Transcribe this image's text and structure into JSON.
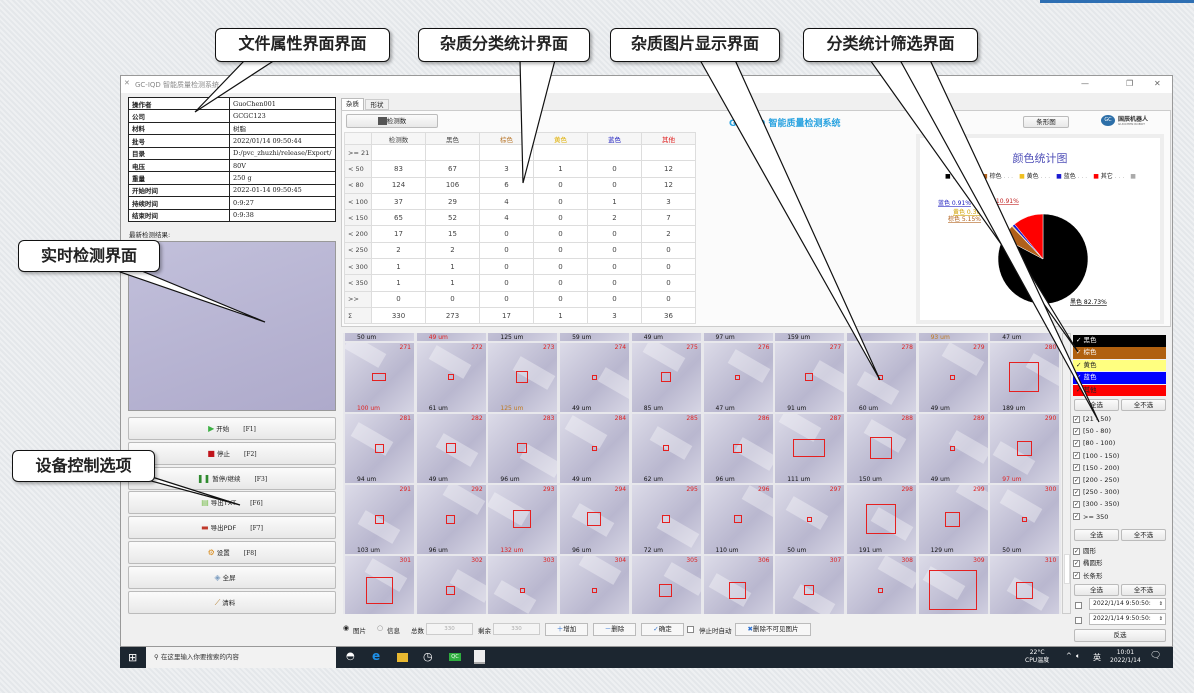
{
  "callouts": {
    "file_attr": "文件属性界面界面",
    "impurity_stats": "杂质分类统计界面",
    "impurity_images": "杂质图片显示界面",
    "filter_stats": "分类统计筛选界面",
    "realtime": "实时检测界面",
    "device_control": "设备控制选项"
  },
  "window": {
    "title": "GC-IQD 智能质量检测系统",
    "app_title": "GC-IQD 智能质量检测系统",
    "logo_text": "国辰机器人",
    "logo_sub": "GUOCHEN ROBOT"
  },
  "info": [
    [
      "操作者",
      "GuoChen001"
    ],
    [
      "公司",
      "GCGC123"
    ],
    [
      "材料",
      "树脂"
    ],
    [
      "批号",
      "2022/01/14 09:50:44"
    ],
    [
      "目录",
      "D:/pvc_zhuzhi/release/Export/"
    ],
    [
      "电压",
      "80V"
    ],
    [
      "重量",
      "250 g"
    ],
    [
      "开始时间",
      "2022-01-14 09:50:45"
    ],
    [
      "持续时间",
      "0:9:27"
    ],
    [
      "结束时间",
      "0:9:38"
    ]
  ],
  "latest_label": "最新检测结果:",
  "controls": [
    {
      "label": "开始",
      "key": "[F1]",
      "icon": "play-icon",
      "color": "#3cb043"
    },
    {
      "label": "停止",
      "key": "[F2]",
      "icon": "stop-icon",
      "color": "#c0141b"
    },
    {
      "label": "暂停/继续",
      "key": "[F3]",
      "icon": "pause-icon",
      "color": "#2f8a2f"
    },
    {
      "label": "导出TXT",
      "key": "[F6]",
      "icon": "txt-file-icon",
      "color": "#7cbf52"
    },
    {
      "label": "导出PDF",
      "key": "[F7]",
      "icon": "pdf-icon",
      "color": "#c0392b"
    },
    {
      "label": "设置",
      "key": "[F8]",
      "icon": "gear-icon",
      "color": "#d88a1a"
    },
    {
      "label": "全屏",
      "key": "",
      "icon": "fullscreen-icon",
      "color": "#7a9cc0"
    },
    {
      "label": "清料",
      "key": "",
      "icon": "broom-icon",
      "color": "#b07a2a"
    }
  ],
  "tabs": [
    "杂质",
    "形状"
  ],
  "count_button": "检测数",
  "bar_chart_button": "条形图",
  "stats": {
    "headers": [
      "检测数",
      "黑色",
      "棕色",
      "黄色",
      "蓝色",
      "其他"
    ],
    "header_colors": [
      "#444",
      "#444",
      "#b8762a",
      "#e0b000",
      "#2020c0",
      "#e02020"
    ],
    "rows": [
      [
        ">= 21",
        "",
        "",
        "",
        "",
        "",
        ""
      ],
      [
        "<  50",
        "83",
        "67",
        "3",
        "1",
        "0",
        "12"
      ],
      [
        "<  80",
        "124",
        "106",
        "6",
        "0",
        "0",
        "12"
      ],
      [
        "< 100",
        "37",
        "29",
        "4",
        "0",
        "1",
        "3"
      ],
      [
        "< 150",
        "65",
        "52",
        "4",
        "0",
        "2",
        "7"
      ],
      [
        "< 200",
        "17",
        "15",
        "0",
        "0",
        "0",
        "2"
      ],
      [
        "< 250",
        "2",
        "2",
        "0",
        "0",
        "0",
        "0"
      ],
      [
        "< 300",
        "1",
        "1",
        "0",
        "0",
        "0",
        "0"
      ],
      [
        "< 350",
        "1",
        "1",
        "0",
        "0",
        "0",
        "0"
      ],
      [
        ">>",
        "0",
        "0",
        "0",
        "0",
        "0",
        "0"
      ],
      [
        "Σ",
        "330",
        "273",
        "17",
        "1",
        "3",
        "36"
      ]
    ]
  },
  "chart_data": {
    "type": "pie",
    "title": "颜色统计图",
    "legend_position": "top",
    "slices": [
      {
        "name": "黑色",
        "value": 273,
        "percent_label": "黑色 82.73%",
        "color": "#000000"
      },
      {
        "name": "棕色",
        "value": 17,
        "percent_label": "棕色 5.15%",
        "color": "#b0601a"
      },
      {
        "name": "黄色",
        "value": 1,
        "percent_label": "黄色 0.30%",
        "color": "#f0c020"
      },
      {
        "name": "蓝色",
        "value": 3,
        "percent_label": "蓝色 0.91%",
        "color": "#1a1ad0"
      },
      {
        "name": "其它",
        "value": 36,
        "percent_label": "其它 10.91%",
        "color": "#ff0000"
      }
    ]
  },
  "images": {
    "top_sizes": [
      [
        "50 um",
        "#111"
      ],
      [
        "49 um",
        "#e02020"
      ],
      [
        "125 um",
        "#111"
      ],
      [
        "59 um",
        "#111"
      ],
      [
        "49 um",
        "#111"
      ],
      [
        "97 um",
        "#111"
      ],
      [
        "159 um",
        "#111"
      ],
      [
        "",
        "#111"
      ],
      [
        "93 um",
        "#c07a20"
      ],
      [
        "47 um",
        "#111"
      ]
    ],
    "rows": [
      {
        "ids": [
          "271",
          "272",
          "273",
          "274",
          "275",
          "276",
          "277",
          "278",
          "279",
          "280"
        ],
        "sizes": [
          [
            "100 um",
            "#e02020"
          ],
          [
            "61 um",
            "#111"
          ],
          [
            "125 um",
            "#c07a20"
          ],
          [
            "49 um",
            "#111"
          ],
          [
            "85 um",
            "#111"
          ],
          [
            "47 um",
            "#111"
          ],
          [
            "91 um",
            "#111"
          ],
          [
            "60 um",
            "#111"
          ],
          [
            "49 um",
            "#111"
          ],
          [
            "189 um",
            "#111"
          ]
        ]
      },
      {
        "ids": [
          "281",
          "282",
          "283",
          "284",
          "285",
          "286",
          "287",
          "288",
          "289",
          "290"
        ],
        "sizes": [
          [
            "94 um",
            "#111"
          ],
          [
            "49 um",
            "#111"
          ],
          [
            "96 um",
            "#111"
          ],
          [
            "49 um",
            "#111"
          ],
          [
            "62 um",
            "#111"
          ],
          [
            "96 um",
            "#111"
          ],
          [
            "111 um",
            "#111"
          ],
          [
            "150 um",
            "#111"
          ],
          [
            "49 um",
            "#111"
          ],
          [
            "97 um",
            "#e02020"
          ]
        ]
      },
      {
        "ids": [
          "291",
          "292",
          "293",
          "294",
          "295",
          "296",
          "297",
          "298",
          "299",
          "300"
        ],
        "sizes": [
          [
            "103 um",
            "#111"
          ],
          [
            "96 um",
            "#111"
          ],
          [
            "132 um",
            "#e02020"
          ],
          [
            "96 um",
            "#111"
          ],
          [
            "72 um",
            "#111"
          ],
          [
            "110 um",
            "#111"
          ],
          [
            "50 um",
            "#111"
          ],
          [
            "191 um",
            "#111"
          ],
          [
            "129 um",
            "#111"
          ],
          [
            "50 um",
            "#111"
          ]
        ]
      },
      {
        "ids": [
          "301",
          "302",
          "303",
          "304",
          "305",
          "306",
          "307",
          "308",
          "309",
          "310"
        ],
        "sizes": []
      }
    ]
  },
  "filters": {
    "colors": [
      {
        "label": "黑色",
        "bg": "#000000",
        "fg": "#ffffff"
      },
      {
        "label": "棕色",
        "bg": "#b0600f",
        "fg": "#ffffff"
      },
      {
        "label": "黄色",
        "bg": "#ffff80",
        "fg": "#222222"
      },
      {
        "label": "蓝色",
        "bg": "#0000ff",
        "fg": "#ffffff"
      },
      {
        "label": "其他",
        "bg": "#ff0000",
        "fg": "#222222"
      }
    ],
    "select_all": "全选",
    "select_none": "全不选",
    "sizes": [
      "[21 - 50)",
      "[50 - 80)",
      "[80 - 100)",
      "[100 - 150)",
      "[150 - 200)",
      "[200 - 250)",
      "[250 - 300)",
      "[300 - 350)",
      ">= 350"
    ],
    "shapes": [
      "圆形",
      "椭圆形",
      "长条形"
    ],
    "date_from": "2022/1/14 9:50:50:",
    "date_to": "2022/1/14 9:50:50:",
    "invert": "反选"
  },
  "toolbar": {
    "radio_image": "图片",
    "radio_info": "信息",
    "total_label": "总数",
    "total": "330",
    "remain_label": "剩余",
    "remain": "330",
    "add": "增加",
    "delete": "删除",
    "confirm": "确定",
    "auto_stop": "停止时自动",
    "delete_invisible": "删除不可见图片"
  },
  "taskbar": {
    "search_placeholder": "在这里输入你要搜索的内容",
    "temp": "22°C",
    "temp_label": "CPU温度",
    "ime": "英",
    "time": "10:01",
    "date": "2022/1/14"
  }
}
